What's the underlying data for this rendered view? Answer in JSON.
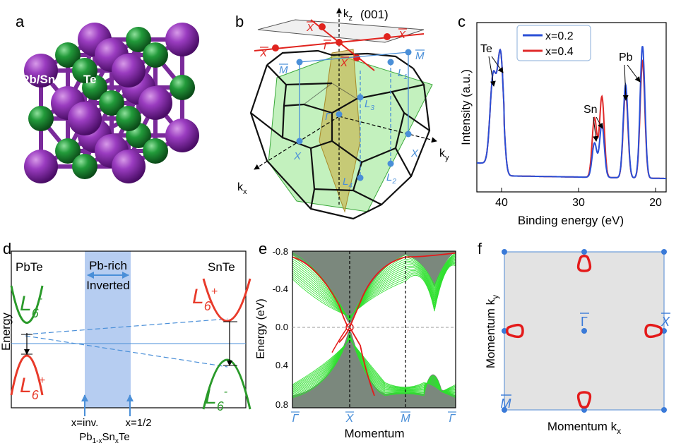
{
  "panels": {
    "a": {
      "letter": "a",
      "labels": {
        "pbsn": "Pb/Sn",
        "te": "Te"
      },
      "colors": {
        "pbsn": "#8e2fb0",
        "te": "#1f8a36",
        "bond": "#7a2a9a"
      }
    },
    "b": {
      "letter": "b",
      "surface": "(001)",
      "axes": {
        "kz": "k",
        "kz_sub": "z",
        "kx": "k",
        "kx_sub": "x",
        "ky": "k",
        "ky_sub": "y"
      },
      "points": {
        "xbar": "X",
        "gbar": "Γ",
        "mbar": "M",
        "x": "X",
        "gamma": "Γ",
        "l1": "L",
        "l1_sub": "1",
        "l2": "L",
        "l2_sub": "2",
        "l3": "L",
        "l3_sub": "3",
        "l4": "L",
        "l4_sub": "4"
      }
    },
    "c": {
      "letter": "c",
      "legend": [
        "x=0.2",
        "x=0.4"
      ],
      "element_labels": {
        "te": "Te",
        "sn": "Sn",
        "pb": "Pb"
      },
      "ylabel": "Intensity (a.u.)",
      "xlabel": "Binding energy (eV)",
      "xticks": [
        "40",
        "30",
        "20"
      ],
      "colors": {
        "x02": "#2a4fd6",
        "x04": "#e02a2a"
      }
    },
    "d": {
      "letter": "d",
      "left_label": "PbTe",
      "right_label": "SnTe",
      "band_top": "Pb-rich",
      "band_bottom": "Inverted",
      "ylabel": "Energy",
      "l6": "L",
      "l6_sub": "6",
      "minus": "-",
      "plus": "+",
      "x_inv": "x=inv.",
      "x_half": "x=1/2",
      "compound_a": "Pb",
      "compound_sub1": "1-x",
      "compound_b": "Sn",
      "compound_sub2": "x",
      "compound_c": "Te"
    },
    "e": {
      "letter": "e",
      "ylabel": "Energy (eV)",
      "xlabel": "Momentum",
      "yticks": [
        "-0.8",
        "-0.4",
        "0.0",
        "0.4",
        "0.8"
      ],
      "xticks": [
        "Γ",
        "X",
        "M",
        "Γ"
      ]
    },
    "f": {
      "letter": "f",
      "xlabel": "Momentum k",
      "xlabel_sub": "x",
      "ylabel": "Momentum k",
      "ylabel_sub": "y",
      "gamma": "Γ",
      "xbar": "X",
      "mbar": "M"
    }
  }
}
